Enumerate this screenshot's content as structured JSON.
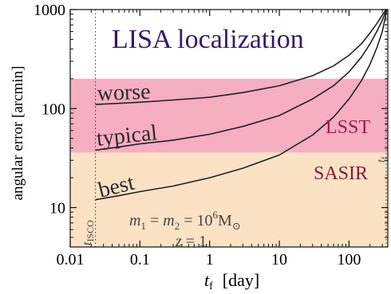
{
  "chart_data": {
    "type": "line",
    "title": "LISA localization",
    "xlabel": "t_f  [day]",
    "xlabel_main": "t",
    "xlabel_sub": "f",
    "xlabel_unit": "[day]",
    "ylabel": "angular error [arcmin]",
    "xscale": "log",
    "yscale": "log",
    "xlim": [
      0.01,
      360
    ],
    "ylim": [
      4,
      1000
    ],
    "x_ticks": [
      0.01,
      0.1,
      1,
      10,
      100
    ],
    "x_tick_labels": [
      "0.01",
      "0.1",
      "1",
      "10",
      "100"
    ],
    "y_ticks": [
      10,
      100,
      1000
    ],
    "y_tick_labels": [
      "10",
      "100",
      "1000"
    ],
    "grid": false,
    "bands": [
      {
        "name": "LSST",
        "y_range": [
          36,
          200
        ],
        "color": "#f4a0b6"
      },
      {
        "name": "SASIR",
        "y_range": [
          4,
          36
        ],
        "color": "#fbd8b0"
      }
    ],
    "vlines": [
      {
        "label_main": "t",
        "label_sub": "ISCO",
        "x": 0.023
      },
      {
        "label_main": "t",
        "label_sub": "f",
        "x": 340
      }
    ],
    "series": [
      {
        "name": "worse",
        "x": [
          0.023,
          0.05,
          0.1,
          0.3,
          1,
          3,
          10,
          30,
          60,
          100,
          150,
          200,
          250,
          300,
          340
        ],
        "y": [
          110,
          113,
          116,
          122,
          130,
          145,
          170,
          215,
          270,
          345,
          450,
          580,
          720,
          880,
          1000
        ]
      },
      {
        "name": "typical",
        "x": [
          0.023,
          0.05,
          0.1,
          0.3,
          1,
          3,
          10,
          30,
          60,
          100,
          150,
          200,
          250,
          300,
          345
        ],
        "y": [
          38,
          41,
          44,
          48,
          55,
          66,
          85,
          125,
          170,
          235,
          330,
          450,
          600,
          780,
          1000
        ]
      },
      {
        "name": "best",
        "x": [
          0.023,
          0.05,
          0.1,
          0.3,
          1,
          3,
          10,
          30,
          60,
          100,
          150,
          200,
          250,
          300,
          350
        ],
        "y": [
          12,
          13.2,
          14.5,
          16.5,
          20,
          25,
          34,
          54,
          82,
          125,
          190,
          280,
          410,
          600,
          1000
        ]
      }
    ],
    "annotations": {
      "params_line1": "m1 = m2 = 10^6 M⊙",
      "p_m": "m",
      "p_one": "1",
      "p_eq1": " = ",
      "p_two": "2",
      "p_eq2": " = 10",
      "p_exp": "6",
      "p_msun": "M",
      "p_sun_sub": "⊙",
      "params_line2": "z = 1",
      "p_z": "z",
      "p_eq3": " = 1"
    },
    "colors": {
      "title": "#3a1860",
      "lsst_label": "#a01a48",
      "sasir_label": "#8a1a3a",
      "curve": "#222222",
      "text_curve": "#2a2a2a"
    }
  }
}
